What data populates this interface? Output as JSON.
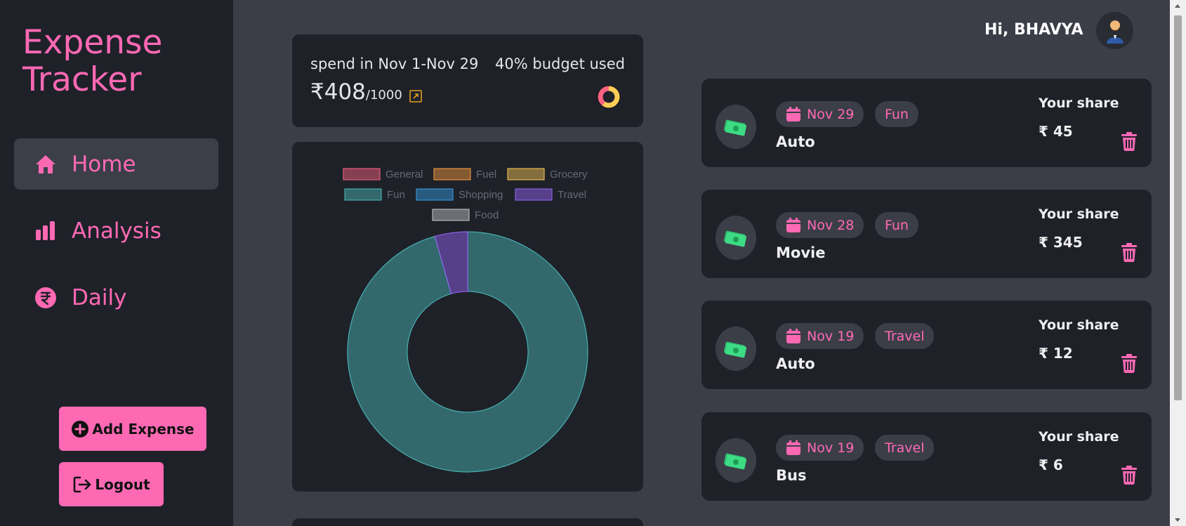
{
  "brand": {
    "line1": "Expense",
    "line2": "Tracker"
  },
  "nav": [
    {
      "label": "Home",
      "icon": "home-icon",
      "active": true
    },
    {
      "label": "Analysis",
      "icon": "bar-chart-icon",
      "active": false
    },
    {
      "label": "Daily",
      "icon": "rupee-circle-icon",
      "active": false
    }
  ],
  "actions": {
    "add_label": "Add Expense",
    "logout_label": "Logout"
  },
  "summary": {
    "period": "spend in Nov 1-Nov 29",
    "budget_used": "40% budget used",
    "spent": "₹408",
    "limit": "/1000",
    "budget_fraction": 0.4
  },
  "header": {
    "greeting": "Hi, BHAVYA"
  },
  "colors": {
    "accent": "#ff69b4",
    "panel": "#1f2129",
    "background": "#3b3e47"
  },
  "chart_data": {
    "type": "pie",
    "legend": [
      {
        "name": "General",
        "color": "#ff6384"
      },
      {
        "name": "Fuel",
        "color": "#ff9f40"
      },
      {
        "name": "Grocery",
        "color": "#ffcd56"
      },
      {
        "name": "Fun",
        "color": "#4bc0c0"
      },
      {
        "name": "Shopping",
        "color": "#36a2eb"
      },
      {
        "name": "Travel",
        "color": "#9966ff"
      },
      {
        "name": "Food",
        "color": "#c9cbcf"
      }
    ],
    "values": [
      0,
      0,
      0,
      390,
      0,
      18,
      0
    ],
    "legend_position": "top"
  },
  "expenses": [
    {
      "date": "Nov 29",
      "category": "Fun",
      "title": "Auto",
      "share_label": "Your share",
      "share": "₹ 45"
    },
    {
      "date": "Nov 28",
      "category": "Fun",
      "title": "Movie",
      "share_label": "Your share",
      "share": "₹ 345"
    },
    {
      "date": "Nov 19",
      "category": "Travel",
      "title": "Auto",
      "share_label": "Your share",
      "share": "₹ 12"
    },
    {
      "date": "Nov 19",
      "category": "Travel",
      "title": "Bus",
      "share_label": "Your share",
      "share": "₹ 6"
    }
  ]
}
